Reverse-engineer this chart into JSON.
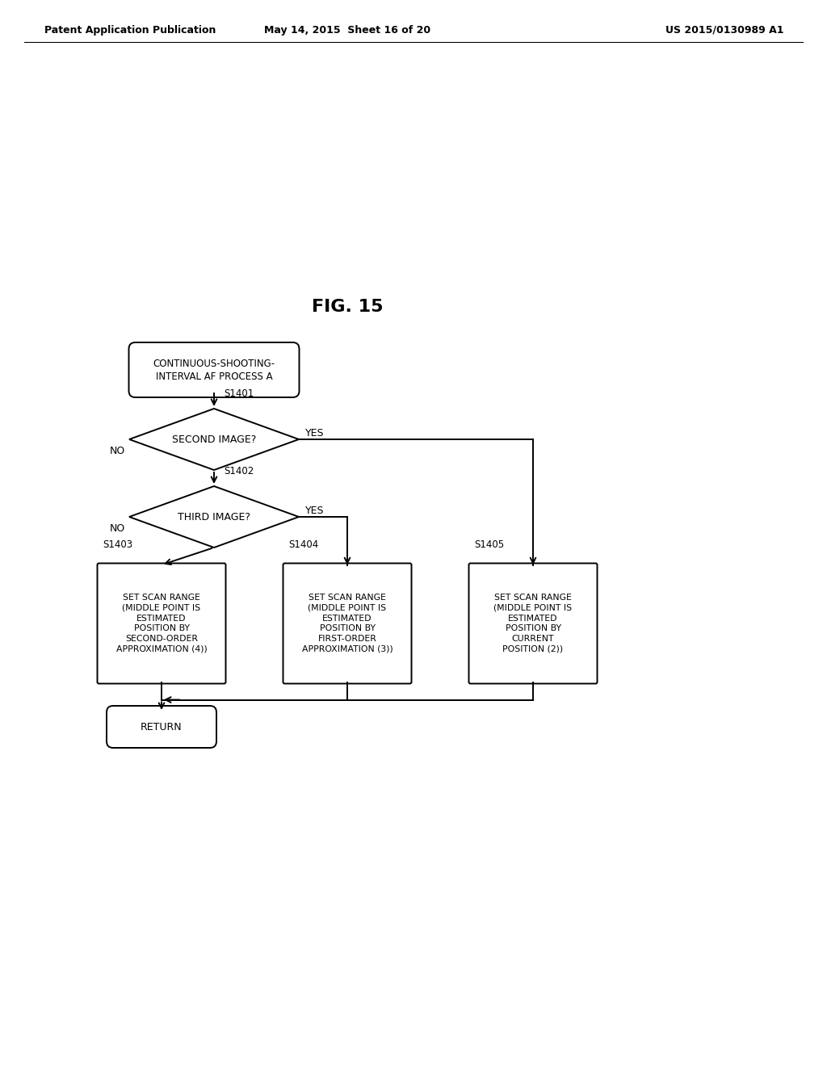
{
  "bg_color": "#ffffff",
  "text_color": "#000000",
  "header_left": "Patent Application Publication",
  "header_mid": "May 14, 2015  Sheet 16 of 20",
  "header_right": "US 2015/0130989 A1",
  "fig_label": "FIG. 15",
  "start_label": "CONTINUOUS-SHOOTING-\nINTERVAL AF PROCESS A",
  "d1_label": "SECOND IMAGE?",
  "d1_step": "S1401",
  "d2_label": "THIRD IMAGE?",
  "d2_step": "S1402",
  "box1_label": "SET SCAN RANGE\n(MIDDLE POINT IS\nESTIMATED\nPOSITION BY\nSECOND-ORDER\nAPPROXIMATION (4))",
  "box1_step": "S1403",
  "box2_label": "SET SCAN RANGE\n(MIDDLE POINT IS\nESTIMATED\nPOSITION BY\nFIRST-ORDER\nAPPROXIMATION (3))",
  "box2_step": "S1404",
  "box3_label": "SET SCAN RANGE\n(MIDDLE POINT IS\nESTIMATED\nPOSITION BY\nCURRENT\nPOSITION (2))",
  "box3_step": "S1405",
  "return_label": "RETURN",
  "yes_label": "YES",
  "no_label": "NO",
  "lw": 1.4
}
